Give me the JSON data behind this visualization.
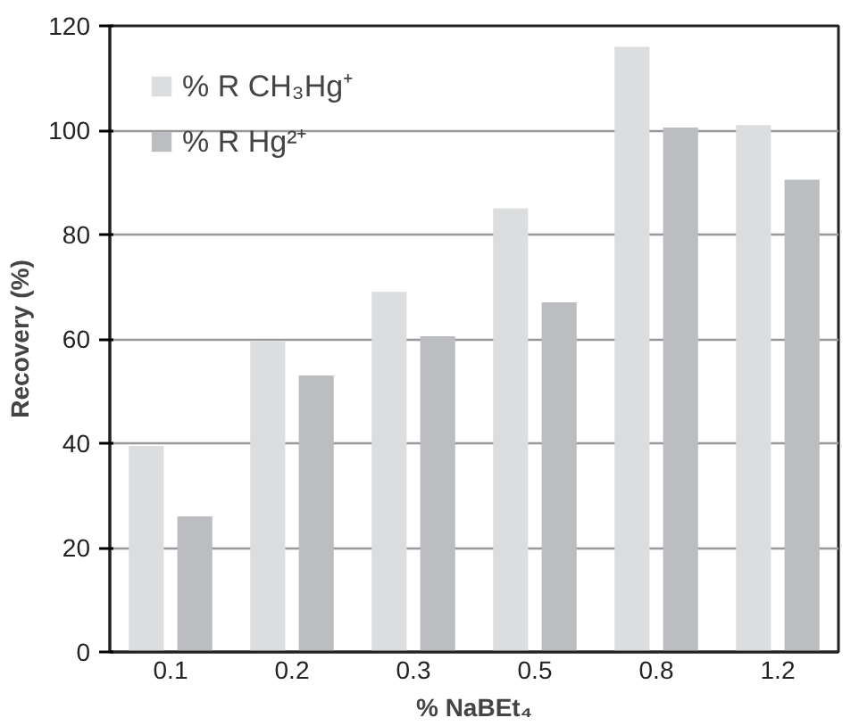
{
  "chart_data": {
    "type": "bar",
    "xlabel": "% NaBEt₄",
    "ylabel": "Recovery (%)",
    "categories": [
      "0.1",
      "0.2",
      "0.3",
      "0.5",
      "0.8",
      "1.2"
    ],
    "series": [
      {
        "name": "% R CH₃Hg⁺",
        "color": "#dcdddf",
        "values": [
          39.5,
          59.5,
          69,
          85,
          116,
          101
        ]
      },
      {
        "name": "% R Hg²⁺",
        "color": "#bcbdc1",
        "values": [
          26,
          53,
          60.5,
          67,
          100.5,
          90.5
        ]
      }
    ],
    "ylim": [
      0,
      120
    ],
    "yticks": [
      0,
      20,
      40,
      60,
      80,
      100,
      120
    ],
    "grid": "y",
    "legend": "top left"
  }
}
